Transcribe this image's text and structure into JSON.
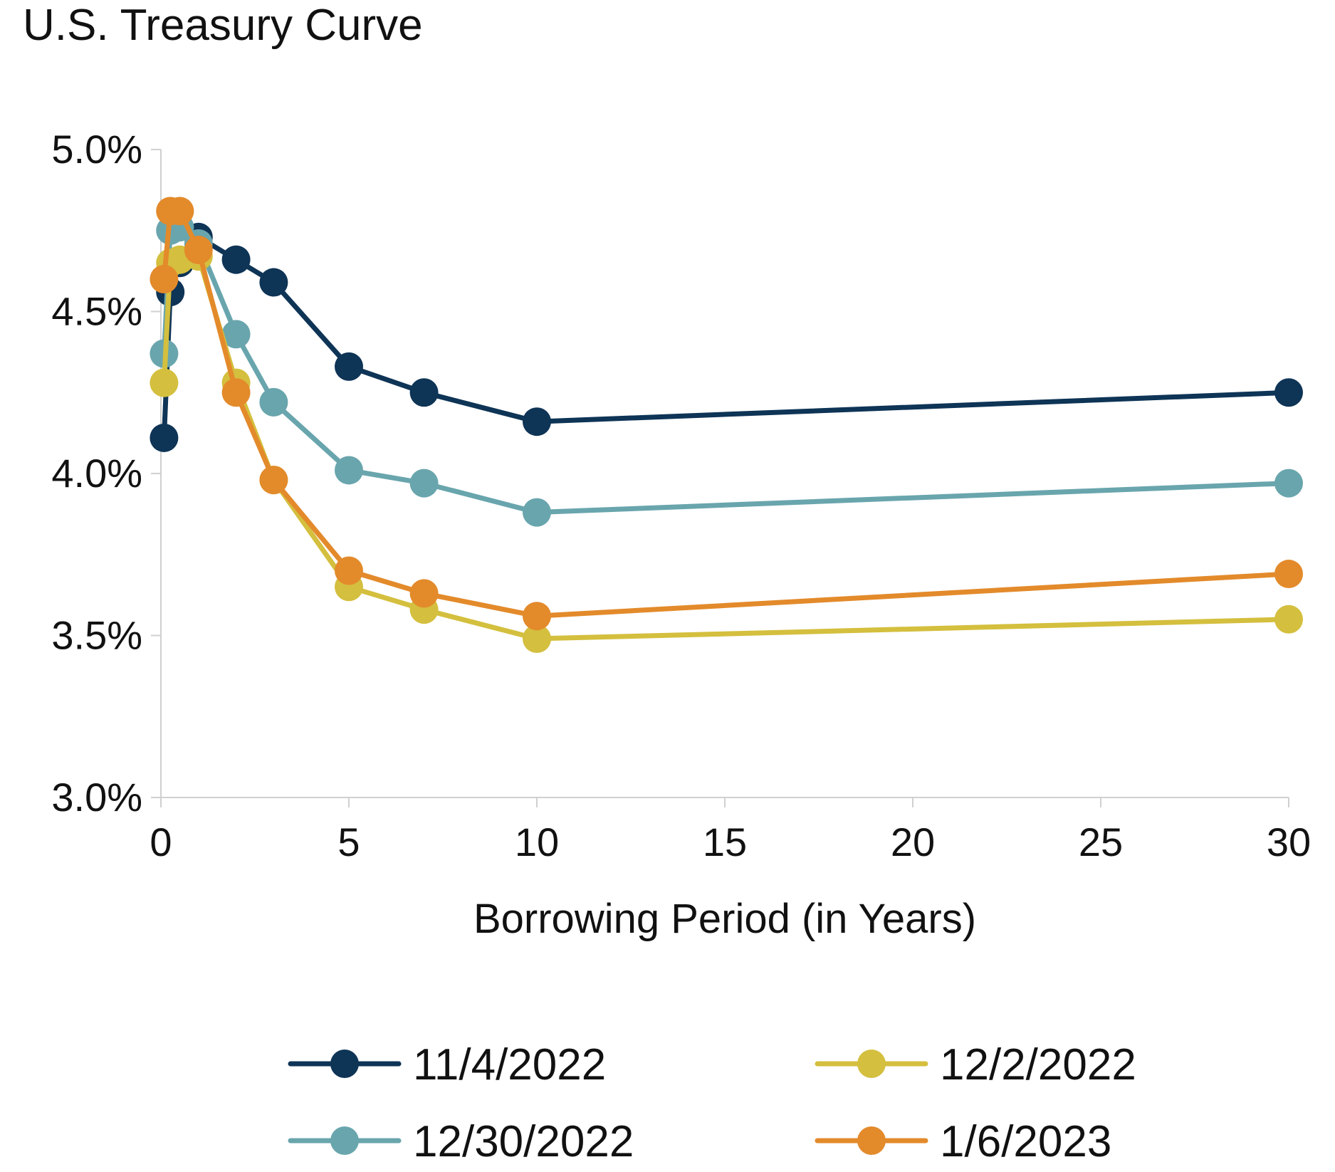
{
  "chart_data": {
    "type": "line",
    "title": "U.S. Treasury Curve",
    "xlabel": "Borrowing Period (in Years)",
    "ylabel": "",
    "x_ticks": [
      "0",
      "5",
      "10",
      "15",
      "20",
      "25",
      "30"
    ],
    "y_ticks": [
      "3.0%",
      "3.5%",
      "4.0%",
      "4.5%",
      "5.0%"
    ],
    "xlim": [
      0,
      30
    ],
    "ylim": [
      3.0,
      5.0
    ],
    "grid": false,
    "legend_position": "bottom",
    "x": [
      0.0833,
      0.25,
      0.5,
      1,
      2,
      3,
      5,
      7,
      10,
      30
    ],
    "series": [
      {
        "name": "11/4/2022",
        "color": "#0e3456",
        "values": [
          4.11,
          4.56,
          4.65,
          4.73,
          4.66,
          4.59,
          4.33,
          4.25,
          4.16,
          4.25
        ]
      },
      {
        "name": "12/2/2022",
        "color": "#d4bf3e",
        "values": [
          4.28,
          4.65,
          4.66,
          4.67,
          4.28,
          3.98,
          3.65,
          3.58,
          3.49,
          3.55
        ]
      },
      {
        "name": "12/30/2022",
        "color": "#69a5ad",
        "values": [
          4.37,
          4.75,
          4.76,
          4.71,
          4.43,
          4.22,
          4.01,
          3.97,
          3.88,
          3.97
        ]
      },
      {
        "name": "1/6/2023",
        "color": "#e38a2b",
        "values": [
          4.6,
          4.81,
          4.81,
          4.69,
          4.25,
          3.98,
          3.7,
          3.63,
          3.56,
          3.69
        ]
      }
    ]
  }
}
